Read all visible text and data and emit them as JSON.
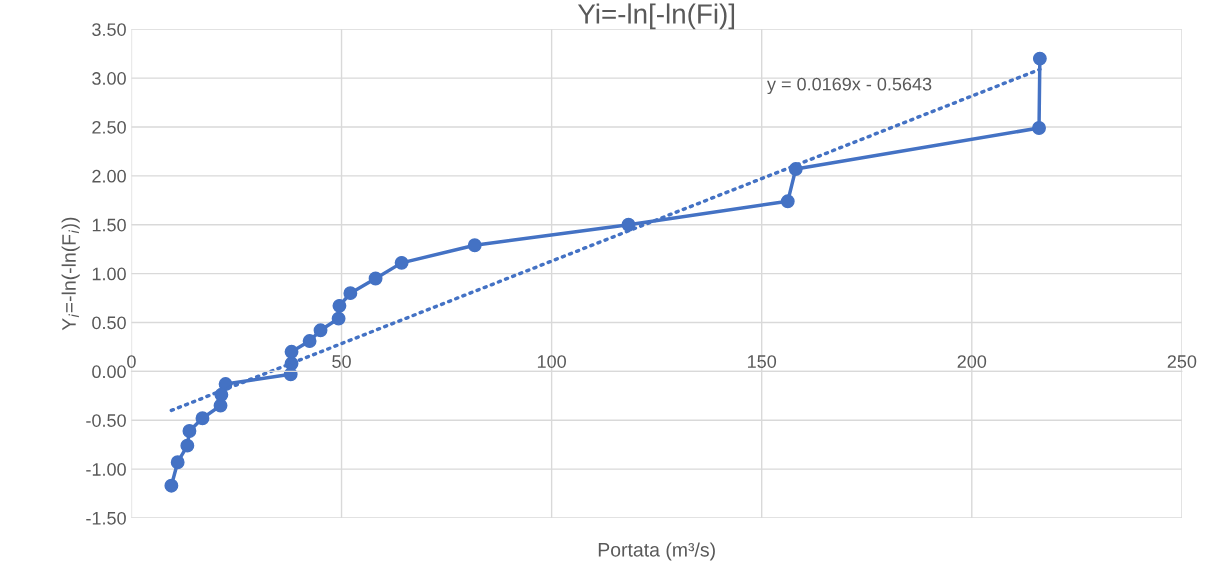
{
  "chart_data": {
    "type": "line",
    "title": "Yi=-ln[-ln(Fi)]",
    "xlabel": "Portata (m³/s)",
    "ylabel": "Y$_{i}$=-ln(-ln(F$_{i}$))",
    "xlim": [
      0,
      250
    ],
    "xticks": [
      0,
      50,
      100,
      150,
      200,
      250
    ],
    "ylim": [
      -1.5,
      3.5
    ],
    "yticks": [
      {
        "value": -1.5,
        "label": "-1.50"
      },
      {
        "value": -1.0,
        "label": "-1.00"
      },
      {
        "value": -0.5,
        "label": "-0.50"
      },
      {
        "value": 0,
        "label": "0.00"
      },
      {
        "value": 0.5,
        "label": "0.50"
      },
      {
        "value": 1.0,
        "label": "1.00"
      },
      {
        "value": 1.5,
        "label": "1.50"
      },
      {
        "value": 2.0,
        "label": "2.00"
      },
      {
        "value": 2.5,
        "label": "2.50"
      },
      {
        "value": 3.0,
        "label": "3.00"
      },
      {
        "value": 3.5,
        "label": "3.50"
      }
    ],
    "grid": true,
    "legend": false,
    "series": [
      {
        "color": "#4472c4",
        "marker": "circle",
        "line_style": "solid",
        "x": [
          9.5,
          11.0,
          13.3,
          13.8,
          16.9,
          21.2,
          21.4,
          22.4,
          37.9,
          38.1,
          38.1,
          42.4,
          45.0,
          49.3,
          49.5,
          52.1,
          58.1,
          64.3,
          81.7,
          118.3,
          156.2,
          158.1,
          216.0,
          216.2
        ],
        "values": [
          -1.17,
          -0.93,
          -0.76,
          -0.61,
          -0.48,
          -0.35,
          -0.24,
          -0.13,
          -0.03,
          0.08,
          0.2,
          0.31,
          0.42,
          0.54,
          0.67,
          0.8,
          0.95,
          1.11,
          1.29,
          1.5,
          1.74,
          2.07,
          2.49,
          3.2
        ]
      },
      {
        "color": "#4472c4",
        "marker": "none",
        "line_style": "dotted",
        "x": [
          9.5,
          216.2
        ],
        "values": [
          -0.4,
          3.09
        ]
      }
    ],
    "annotations": [
      "y = 0.0169x - 0.5643"
    ]
  }
}
